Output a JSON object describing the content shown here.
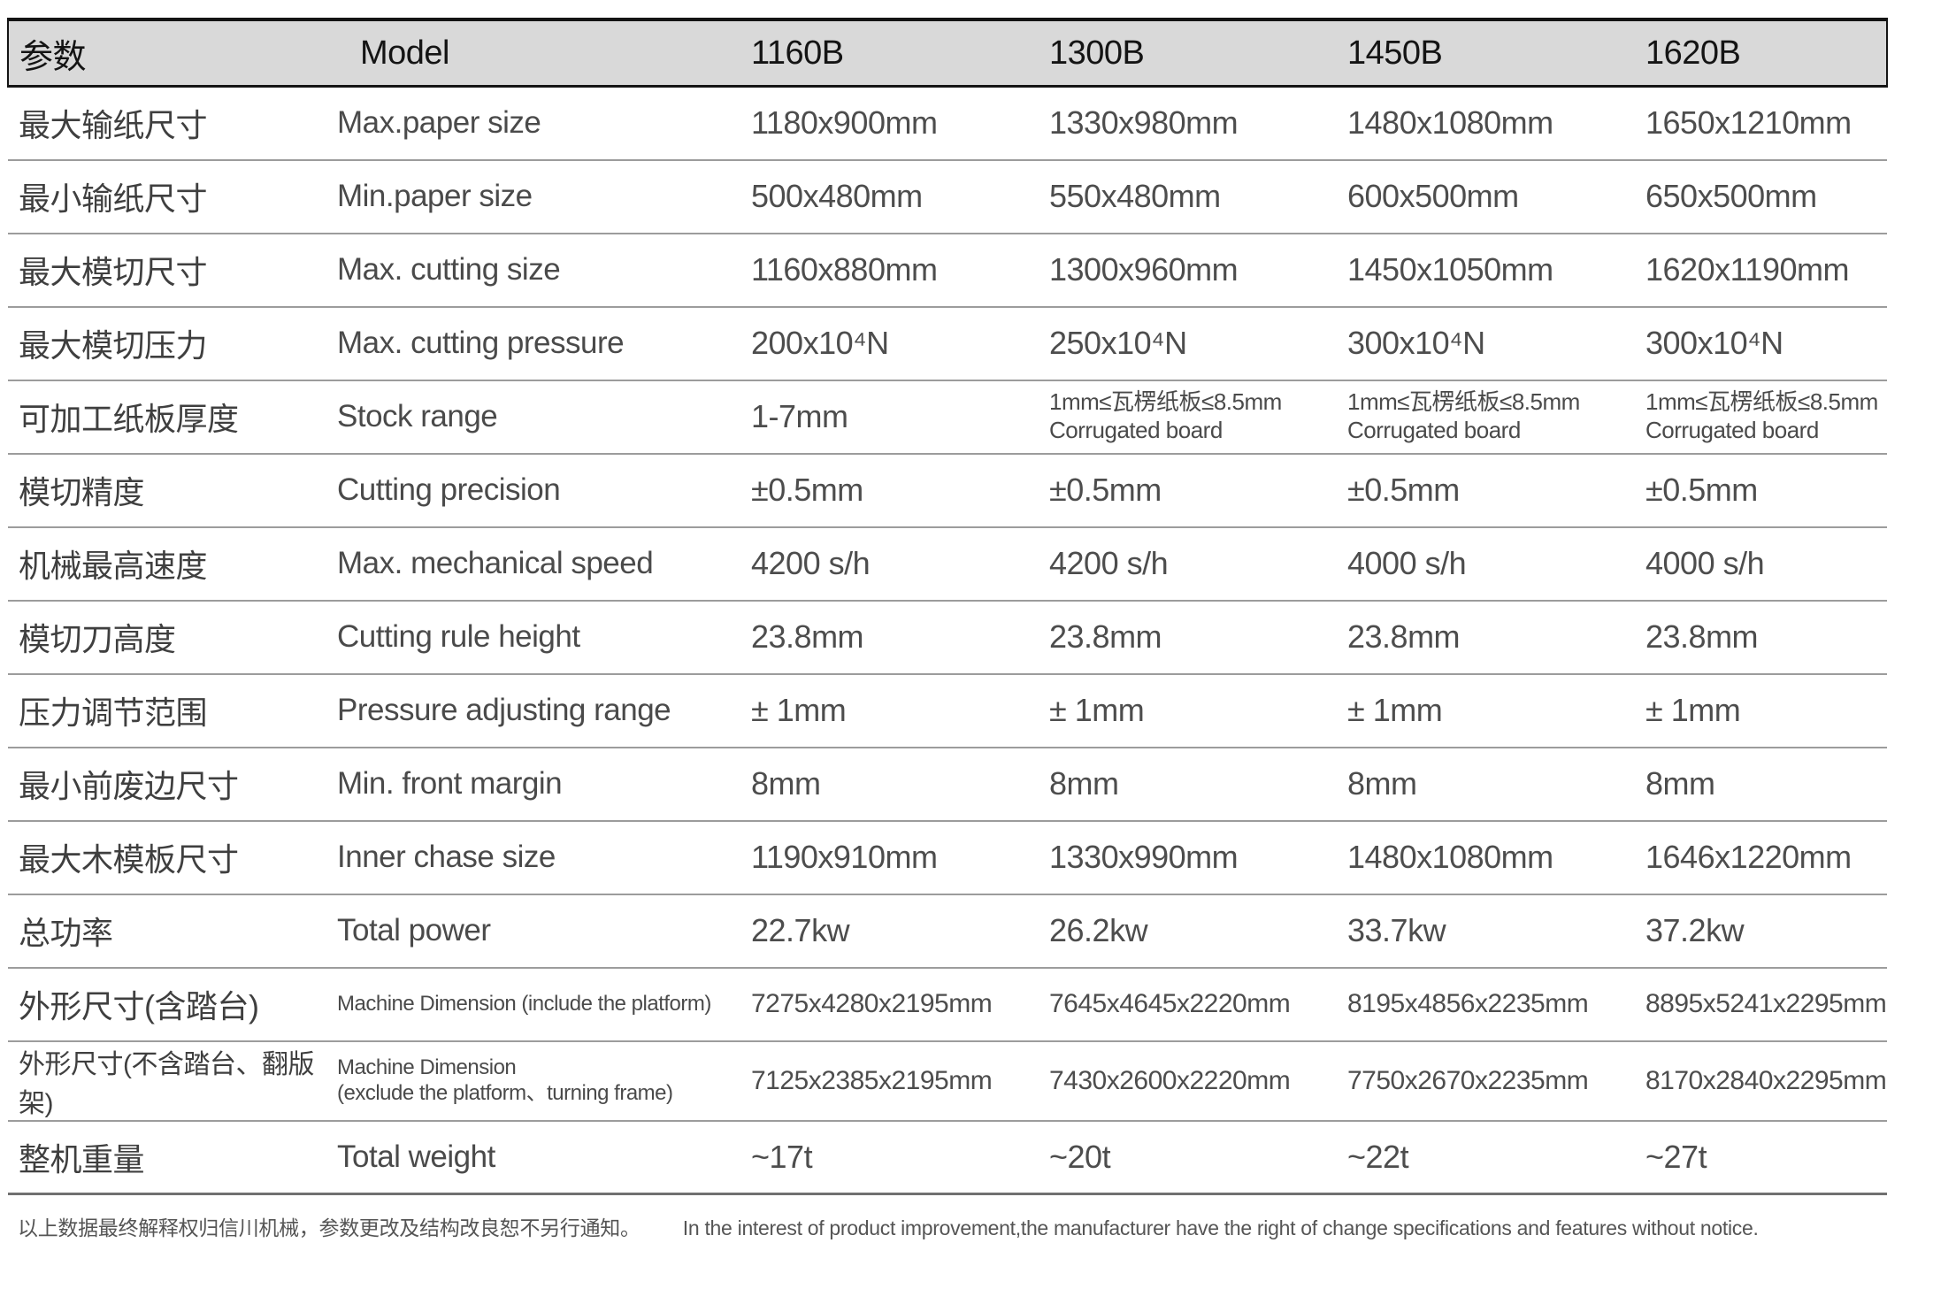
{
  "table": {
    "header": {
      "param_label": "参数",
      "model_label": "Model",
      "models": [
        "1160B",
        "1300B",
        "1450B",
        "1620B"
      ]
    },
    "rows": [
      {
        "cn": "最大输纸尺寸",
        "en": "Max.paper size",
        "values": [
          "1180x900mm",
          "1330x980mm",
          "1480x1080mm",
          "1650x1210mm"
        ]
      },
      {
        "cn": "最小输纸尺寸",
        "en": "Min.paper size",
        "values": [
          "500x480mm",
          "550x480mm",
          "600x500mm",
          "650x500mm"
        ]
      },
      {
        "cn": "最大模切尺寸",
        "en": "Max. cutting size",
        "values": [
          "1160x880mm",
          "1300x960mm",
          "1450x1050mm",
          "1620x1190mm"
        ]
      },
      {
        "cn": "最大模切压力",
        "en": "Max. cutting pressure",
        "values": [
          "200x10⁴N",
          "250x10⁴N",
          "300x10⁴N",
          "300x10⁴N"
        ]
      },
      {
        "cn": "可加工纸板厚度",
        "en": "Stock range",
        "values": [
          "1-7mm",
          "1mm≤瓦楞纸板≤8.5mm\nCorrugated board",
          "1mm≤瓦楞纸板≤8.5mm\nCorrugated board",
          "1mm≤瓦楞纸板≤8.5mm\nCorrugated board"
        ]
      },
      {
        "cn": "模切精度",
        "en": "Cutting precision",
        "values": [
          "±0.5mm",
          "±0.5mm",
          "±0.5mm",
          "±0.5mm"
        ]
      },
      {
        "cn": "机械最高速度",
        "en": "Max. mechanical speed",
        "values": [
          "4200 s/h",
          "4200 s/h",
          "4000 s/h",
          "4000 s/h"
        ]
      },
      {
        "cn": "模切刀高度",
        "en": "Cutting rule height",
        "values": [
          "23.8mm",
          "23.8mm",
          "23.8mm",
          "23.8mm"
        ]
      },
      {
        "cn": "压力调节范围",
        "en": "Pressure adjusting range",
        "values": [
          "± 1mm",
          "± 1mm",
          "± 1mm",
          "± 1mm"
        ]
      },
      {
        "cn": "最小前废边尺寸",
        "en": "Min. front margin",
        "values": [
          "8mm",
          "8mm",
          "8mm",
          "8mm"
        ]
      },
      {
        "cn": "最大木模板尺寸",
        "en": "Inner chase size",
        "values": [
          "1190x910mm",
          "1330x990mm",
          "1480x1080mm",
          "1646x1220mm"
        ]
      },
      {
        "cn": "总功率",
        "en": "Total power",
        "values": [
          "22.7kw",
          "26.2kw",
          "33.7kw",
          "37.2kw"
        ]
      },
      {
        "cn": "外形尺寸(含踏台)",
        "en": "Machine Dimension (include the platform)",
        "values": [
          "7275x4280x2195mm",
          "7645x4645x2220mm",
          "8195x4856x2235mm",
          "8895x5241x2295mm"
        ]
      },
      {
        "cn": "外形尺寸(不含踏台、翻版架)",
        "en": "Machine Dimension\n(exclude the platform、turning frame)",
        "values": [
          "7125x2385x2195mm",
          "7430x2600x2220mm",
          "7750x2670x2235mm",
          "8170x2840x2295mm"
        ]
      },
      {
        "cn": "整机重量",
        "en": "Total weight",
        "values": [
          "~17t",
          "~20t",
          "~22t",
          "~27t"
        ]
      }
    ]
  },
  "footer": {
    "note_cn": "以上数据最终解释权归信川机械，参数更改及结构改良恕不另行通知。",
    "note_en": "In the interest of product improvement,the manufacturer have the right of change specifications and features without notice."
  }
}
